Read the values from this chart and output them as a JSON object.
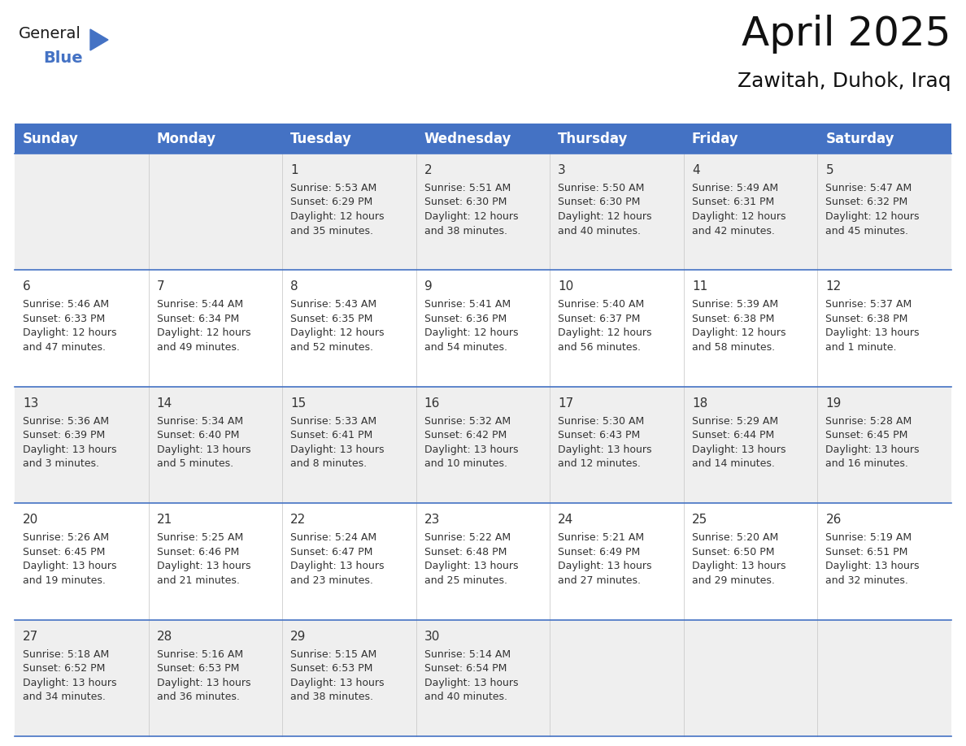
{
  "title": "April 2025",
  "subtitle": "Zawitah, Duhok, Iraq",
  "header_bg_color": "#4472C4",
  "header_text_color": "#FFFFFF",
  "cell_bg_white": "#FFFFFF",
  "cell_bg_gray": "#EFEFEF",
  "grid_color": "#4472C4",
  "divider_color": "#4472C4",
  "col_line_color": "#CCCCCC",
  "text_color": "#333333",
  "day_number_color": "#333333",
  "days_of_week": [
    "Sunday",
    "Monday",
    "Tuesday",
    "Wednesday",
    "Thursday",
    "Friday",
    "Saturday"
  ],
  "weeks": [
    [
      {
        "day": "",
        "sunrise": "",
        "sunset": "",
        "daylight_line1": "",
        "daylight_line2": ""
      },
      {
        "day": "",
        "sunrise": "",
        "sunset": "",
        "daylight_line1": "",
        "daylight_line2": ""
      },
      {
        "day": "1",
        "sunrise": "5:53 AM",
        "sunset": "6:29 PM",
        "daylight_line1": "Daylight: 12 hours",
        "daylight_line2": "and 35 minutes."
      },
      {
        "day": "2",
        "sunrise": "5:51 AM",
        "sunset": "6:30 PM",
        "daylight_line1": "Daylight: 12 hours",
        "daylight_line2": "and 38 minutes."
      },
      {
        "day": "3",
        "sunrise": "5:50 AM",
        "sunset": "6:30 PM",
        "daylight_line1": "Daylight: 12 hours",
        "daylight_line2": "and 40 minutes."
      },
      {
        "day": "4",
        "sunrise": "5:49 AM",
        "sunset": "6:31 PM",
        "daylight_line1": "Daylight: 12 hours",
        "daylight_line2": "and 42 minutes."
      },
      {
        "day": "5",
        "sunrise": "5:47 AM",
        "sunset": "6:32 PM",
        "daylight_line1": "Daylight: 12 hours",
        "daylight_line2": "and 45 minutes."
      }
    ],
    [
      {
        "day": "6",
        "sunrise": "5:46 AM",
        "sunset": "6:33 PM",
        "daylight_line1": "Daylight: 12 hours",
        "daylight_line2": "and 47 minutes."
      },
      {
        "day": "7",
        "sunrise": "5:44 AM",
        "sunset": "6:34 PM",
        "daylight_line1": "Daylight: 12 hours",
        "daylight_line2": "and 49 minutes."
      },
      {
        "day": "8",
        "sunrise": "5:43 AM",
        "sunset": "6:35 PM",
        "daylight_line1": "Daylight: 12 hours",
        "daylight_line2": "and 52 minutes."
      },
      {
        "day": "9",
        "sunrise": "5:41 AM",
        "sunset": "6:36 PM",
        "daylight_line1": "Daylight: 12 hours",
        "daylight_line2": "and 54 minutes."
      },
      {
        "day": "10",
        "sunrise": "5:40 AM",
        "sunset": "6:37 PM",
        "daylight_line1": "Daylight: 12 hours",
        "daylight_line2": "and 56 minutes."
      },
      {
        "day": "11",
        "sunrise": "5:39 AM",
        "sunset": "6:38 PM",
        "daylight_line1": "Daylight: 12 hours",
        "daylight_line2": "and 58 minutes."
      },
      {
        "day": "12",
        "sunrise": "5:37 AM",
        "sunset": "6:38 PM",
        "daylight_line1": "Daylight: 13 hours",
        "daylight_line2": "and 1 minute."
      }
    ],
    [
      {
        "day": "13",
        "sunrise": "5:36 AM",
        "sunset": "6:39 PM",
        "daylight_line1": "Daylight: 13 hours",
        "daylight_line2": "and 3 minutes."
      },
      {
        "day": "14",
        "sunrise": "5:34 AM",
        "sunset": "6:40 PM",
        "daylight_line1": "Daylight: 13 hours",
        "daylight_line2": "and 5 minutes."
      },
      {
        "day": "15",
        "sunrise": "5:33 AM",
        "sunset": "6:41 PM",
        "daylight_line1": "Daylight: 13 hours",
        "daylight_line2": "and 8 minutes."
      },
      {
        "day": "16",
        "sunrise": "5:32 AM",
        "sunset": "6:42 PM",
        "daylight_line1": "Daylight: 13 hours",
        "daylight_line2": "and 10 minutes."
      },
      {
        "day": "17",
        "sunrise": "5:30 AM",
        "sunset": "6:43 PM",
        "daylight_line1": "Daylight: 13 hours",
        "daylight_line2": "and 12 minutes."
      },
      {
        "day": "18",
        "sunrise": "5:29 AM",
        "sunset": "6:44 PM",
        "daylight_line1": "Daylight: 13 hours",
        "daylight_line2": "and 14 minutes."
      },
      {
        "day": "19",
        "sunrise": "5:28 AM",
        "sunset": "6:45 PM",
        "daylight_line1": "Daylight: 13 hours",
        "daylight_line2": "and 16 minutes."
      }
    ],
    [
      {
        "day": "20",
        "sunrise": "5:26 AM",
        "sunset": "6:45 PM",
        "daylight_line1": "Daylight: 13 hours",
        "daylight_line2": "and 19 minutes."
      },
      {
        "day": "21",
        "sunrise": "5:25 AM",
        "sunset": "6:46 PM",
        "daylight_line1": "Daylight: 13 hours",
        "daylight_line2": "and 21 minutes."
      },
      {
        "day": "22",
        "sunrise": "5:24 AM",
        "sunset": "6:47 PM",
        "daylight_line1": "Daylight: 13 hours",
        "daylight_line2": "and 23 minutes."
      },
      {
        "day": "23",
        "sunrise": "5:22 AM",
        "sunset": "6:48 PM",
        "daylight_line1": "Daylight: 13 hours",
        "daylight_line2": "and 25 minutes."
      },
      {
        "day": "24",
        "sunrise": "5:21 AM",
        "sunset": "6:49 PM",
        "daylight_line1": "Daylight: 13 hours",
        "daylight_line2": "and 27 minutes."
      },
      {
        "day": "25",
        "sunrise": "5:20 AM",
        "sunset": "6:50 PM",
        "daylight_line1": "Daylight: 13 hours",
        "daylight_line2": "and 29 minutes."
      },
      {
        "day": "26",
        "sunrise": "5:19 AM",
        "sunset": "6:51 PM",
        "daylight_line1": "Daylight: 13 hours",
        "daylight_line2": "and 32 minutes."
      }
    ],
    [
      {
        "day": "27",
        "sunrise": "5:18 AM",
        "sunset": "6:52 PM",
        "daylight_line1": "Daylight: 13 hours",
        "daylight_line2": "and 34 minutes."
      },
      {
        "day": "28",
        "sunrise": "5:16 AM",
        "sunset": "6:53 PM",
        "daylight_line1": "Daylight: 13 hours",
        "daylight_line2": "and 36 minutes."
      },
      {
        "day": "29",
        "sunrise": "5:15 AM",
        "sunset": "6:53 PM",
        "daylight_line1": "Daylight: 13 hours",
        "daylight_line2": "and 38 minutes."
      },
      {
        "day": "30",
        "sunrise": "5:14 AM",
        "sunset": "6:54 PM",
        "daylight_line1": "Daylight: 13 hours",
        "daylight_line2": "and 40 minutes."
      },
      {
        "day": "",
        "sunrise": "",
        "sunset": "",
        "daylight_line1": "",
        "daylight_line2": ""
      },
      {
        "day": "",
        "sunrise": "",
        "sunset": "",
        "daylight_line1": "",
        "daylight_line2": ""
      },
      {
        "day": "",
        "sunrise": "",
        "sunset": "",
        "daylight_line1": "",
        "daylight_line2": ""
      }
    ]
  ],
  "logo_text_general": "General",
  "logo_text_blue": "Blue",
  "logo_triangle_color": "#4472C4",
  "title_fontsize": 36,
  "subtitle_fontsize": 18,
  "header_fontsize": 12,
  "day_num_fontsize": 11,
  "cell_text_fontsize": 9
}
